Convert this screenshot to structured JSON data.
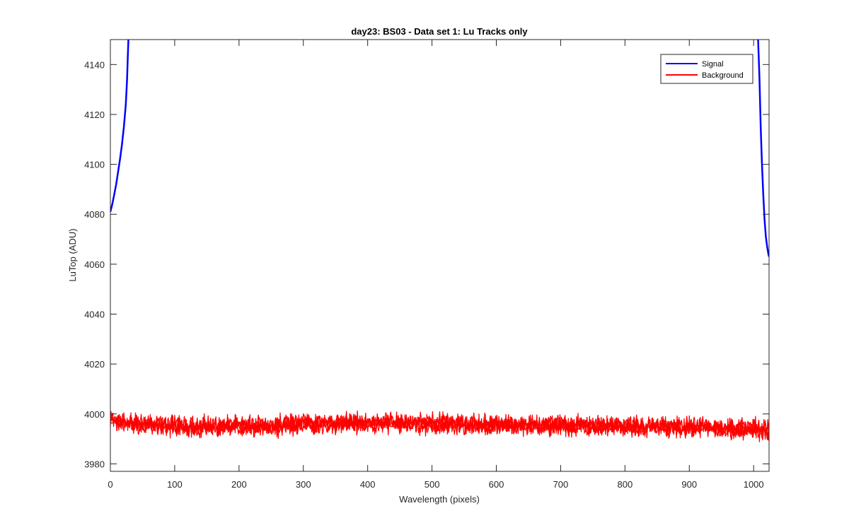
{
  "chart_data": {
    "type": "line",
    "title": "day23: BS03 - Data set 1: Lu Tracks only",
    "xlabel": "Wavelength (pixels)",
    "ylabel": "LuTop (ADU)",
    "xlim": [
      0,
      1024
    ],
    "ylim": [
      3977,
      4150
    ],
    "xticks": [
      0,
      100,
      200,
      300,
      400,
      500,
      600,
      700,
      800,
      900,
      1000
    ],
    "yticks": [
      3980,
      4000,
      4020,
      4040,
      4060,
      4080,
      4100,
      4120,
      4140
    ],
    "grid": false,
    "legend": {
      "location": "top-right",
      "entries": [
        "Signal",
        "Background"
      ]
    },
    "series": [
      {
        "name": "Signal",
        "color": "#0000ff",
        "segments": [
          {
            "x": [
              0,
              3,
              6,
              9,
              12,
              15,
              18,
              21,
              24,
              26,
              27,
              28
            ],
            "y": [
              4081,
              4084,
              4088,
              4092,
              4097,
              4102,
              4108,
              4115,
              4124,
              4134,
              4142,
              4150
            ]
          },
          {
            "x": [
              1007,
              1009,
              1011,
              1013,
              1015,
              1017,
              1019,
              1021,
              1023,
              1024
            ],
            "y": [
              4150,
              4135,
              4115,
              4100,
              4088,
              4078,
              4071,
              4067,
              4064,
              4063
            ]
          }
        ]
      },
      {
        "name": "Background",
        "color": "#ff0000",
        "description_mean": [
          [
            0,
            3997
          ],
          [
            100,
            3995
          ],
          [
            200,
            3995
          ],
          [
            300,
            3996
          ],
          [
            400,
            3996.5
          ],
          [
            500,
            3996
          ],
          [
            600,
            3995.5
          ],
          [
            700,
            3995.5
          ],
          [
            800,
            3995
          ],
          [
            900,
            3994.5
          ],
          [
            1000,
            3994
          ],
          [
            1024,
            3993.5
          ]
        ],
        "noise_amplitude": 3
      }
    ]
  }
}
